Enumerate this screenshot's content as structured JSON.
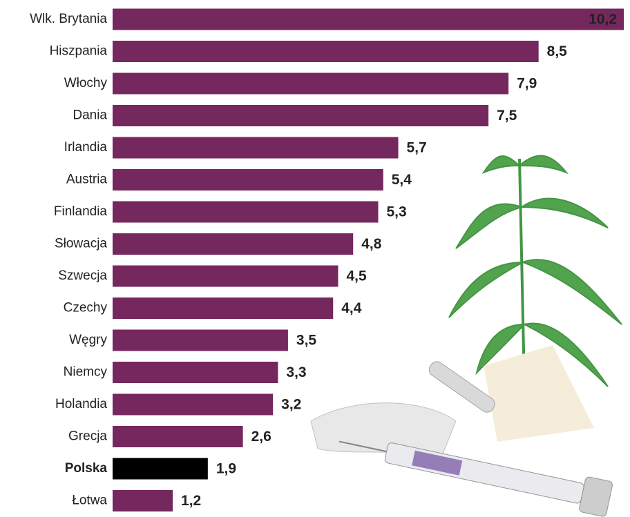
{
  "chart_data": {
    "type": "bar",
    "orientation": "horizontal",
    "categories": [
      "Wlk. Brytania",
      "Hiszpania",
      "Włochy",
      "Dania",
      "Irlandia",
      "Austria",
      "Finlandia",
      "Słowacja",
      "Szwecja",
      "Czechy",
      "Węgry",
      "Niemcy",
      "Holandia",
      "Grecja",
      "Polska",
      "Łotwa"
    ],
    "values": [
      10.2,
      8.5,
      7.9,
      7.5,
      5.7,
      5.4,
      5.3,
      4.8,
      4.5,
      4.4,
      3.5,
      3.3,
      3.2,
      2.6,
      1.9,
      1.2
    ],
    "value_labels": [
      "10,2",
      "8,5",
      "7,9",
      "7,5",
      "5,7",
      "5,4",
      "5,3",
      "4,8",
      "4,5",
      "4,4",
      "3,5",
      "3,3",
      "3,2",
      "2,6",
      "1,9",
      "1,2"
    ],
    "colors": [
      "#74285e",
      "#74285e",
      "#74285e",
      "#74285e",
      "#74285e",
      "#74285e",
      "#74285e",
      "#74285e",
      "#74285e",
      "#74285e",
      "#74285e",
      "#74285e",
      "#74285e",
      "#74285e",
      "#000000",
      "#74285e"
    ],
    "bold_categories": [
      "Polska"
    ]
  }
}
